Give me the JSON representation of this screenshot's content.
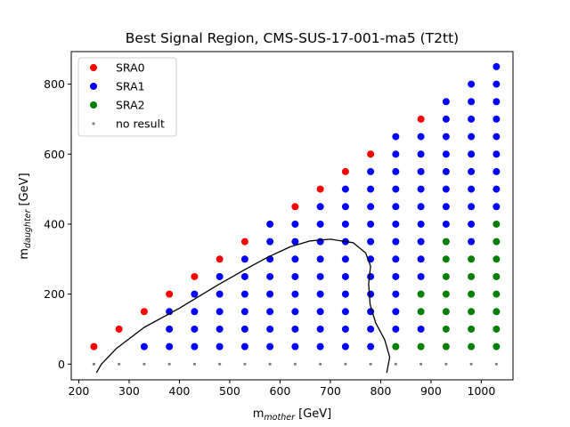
{
  "chart_data": {
    "type": "scatter",
    "title": "Best Signal Region, CMS-SUS-17-001-ma5 (T2tt)",
    "xlabel": {
      "main": "m",
      "sub": "mother",
      "unit": " [GeV]"
    },
    "ylabel": {
      "main": "m",
      "sub": "daughter",
      "unit": " [GeV]"
    },
    "xlim": [
      185,
      1063
    ],
    "ylim": [
      -45,
      893
    ],
    "xticks": [
      200,
      300,
      400,
      500,
      600,
      700,
      800,
      900,
      1000
    ],
    "yticks": [
      0,
      200,
      400,
      600,
      800
    ],
    "grid": false,
    "legend_position": "top-left",
    "series": [
      {
        "name": "SRA0",
        "color": "#ff0000",
        "marker": "large",
        "points": [
          [
            230,
            50
          ],
          [
            280,
            100
          ],
          [
            330,
            150
          ],
          [
            380,
            200
          ],
          [
            430,
            250
          ],
          [
            480,
            300
          ],
          [
            530,
            350
          ],
          [
            630,
            450
          ],
          [
            680,
            500
          ],
          [
            730,
            550
          ],
          [
            780,
            600
          ],
          [
            880,
            700
          ]
        ]
      },
      {
        "name": "SRA1",
        "color": "#0000ff",
        "marker": "large",
        "points": [
          [
            330,
            50
          ],
          [
            380,
            50
          ],
          [
            430,
            50
          ],
          [
            480,
            50
          ],
          [
            530,
            50
          ],
          [
            580,
            50
          ],
          [
            630,
            50
          ],
          [
            680,
            50
          ],
          [
            730,
            50
          ],
          [
            780,
            50
          ],
          [
            380,
            100
          ],
          [
            430,
            100
          ],
          [
            480,
            100
          ],
          [
            530,
            100
          ],
          [
            580,
            100
          ],
          [
            630,
            100
          ],
          [
            680,
            100
          ],
          [
            730,
            100
          ],
          [
            780,
            100
          ],
          [
            830,
            100
          ],
          [
            880,
            100
          ],
          [
            380,
            150
          ],
          [
            430,
            150
          ],
          [
            480,
            150
          ],
          [
            530,
            150
          ],
          [
            580,
            150
          ],
          [
            630,
            150
          ],
          [
            680,
            150
          ],
          [
            730,
            150
          ],
          [
            780,
            150
          ],
          [
            830,
            150
          ],
          [
            430,
            200
          ],
          [
            480,
            200
          ],
          [
            530,
            200
          ],
          [
            580,
            200
          ],
          [
            630,
            200
          ],
          [
            680,
            200
          ],
          [
            730,
            200
          ],
          [
            780,
            200
          ],
          [
            830,
            200
          ],
          [
            480,
            250
          ],
          [
            530,
            250
          ],
          [
            580,
            250
          ],
          [
            630,
            250
          ],
          [
            680,
            250
          ],
          [
            730,
            250
          ],
          [
            780,
            250
          ],
          [
            830,
            250
          ],
          [
            880,
            250
          ],
          [
            530,
            300
          ],
          [
            580,
            300
          ],
          [
            630,
            300
          ],
          [
            680,
            300
          ],
          [
            730,
            300
          ],
          [
            780,
            300
          ],
          [
            830,
            300
          ],
          [
            880,
            300
          ],
          [
            580,
            350
          ],
          [
            630,
            350
          ],
          [
            680,
            350
          ],
          [
            730,
            350
          ],
          [
            780,
            350
          ],
          [
            830,
            350
          ],
          [
            880,
            350
          ],
          [
            980,
            350
          ],
          [
            580,
            400
          ],
          [
            630,
            400
          ],
          [
            680,
            400
          ],
          [
            730,
            400
          ],
          [
            780,
            400
          ],
          [
            830,
            400
          ],
          [
            880,
            400
          ],
          [
            930,
            400
          ],
          [
            980,
            400
          ],
          [
            680,
            450
          ],
          [
            730,
            450
          ],
          [
            780,
            450
          ],
          [
            830,
            450
          ],
          [
            880,
            450
          ],
          [
            930,
            450
          ],
          [
            980,
            450
          ],
          [
            1030,
            450
          ],
          [
            730,
            500
          ],
          [
            780,
            500
          ],
          [
            830,
            500
          ],
          [
            880,
            500
          ],
          [
            930,
            500
          ],
          [
            980,
            500
          ],
          [
            1030,
            500
          ],
          [
            780,
            550
          ],
          [
            830,
            550
          ],
          [
            880,
            550
          ],
          [
            930,
            550
          ],
          [
            980,
            550
          ],
          [
            1030,
            550
          ],
          [
            830,
            600
          ],
          [
            880,
            600
          ],
          [
            930,
            600
          ],
          [
            980,
            600
          ],
          [
            1030,
            600
          ],
          [
            830,
            650
          ],
          [
            880,
            650
          ],
          [
            930,
            650
          ],
          [
            980,
            650
          ],
          [
            1030,
            650
          ],
          [
            930,
            700
          ],
          [
            980,
            700
          ],
          [
            1030,
            700
          ],
          [
            930,
            750
          ],
          [
            980,
            750
          ],
          [
            1030,
            750
          ],
          [
            980,
            800
          ],
          [
            1030,
            800
          ],
          [
            1030,
            850
          ]
        ]
      },
      {
        "name": "SRA2",
        "color": "#008000",
        "marker": "large",
        "points": [
          [
            830,
            50
          ],
          [
            880,
            50
          ],
          [
            930,
            50
          ],
          [
            980,
            50
          ],
          [
            1030,
            50
          ],
          [
            930,
            100
          ],
          [
            980,
            100
          ],
          [
            1030,
            100
          ],
          [
            880,
            150
          ],
          [
            930,
            150
          ],
          [
            980,
            150
          ],
          [
            1030,
            150
          ],
          [
            880,
            200
          ],
          [
            930,
            200
          ],
          [
            980,
            200
          ],
          [
            1030,
            200
          ],
          [
            930,
            250
          ],
          [
            980,
            250
          ],
          [
            1030,
            250
          ],
          [
            930,
            300
          ],
          [
            980,
            300
          ],
          [
            1030,
            300
          ],
          [
            930,
            350
          ],
          [
            1030,
            350
          ],
          [
            1030,
            400
          ]
        ]
      },
      {
        "name": "no result",
        "color": "#808080",
        "marker": "small",
        "points": [
          [
            230,
            0
          ],
          [
            280,
            0
          ],
          [
            330,
            0
          ],
          [
            380,
            0
          ],
          [
            430,
            0
          ],
          [
            480,
            0
          ],
          [
            530,
            0
          ],
          [
            580,
            0
          ],
          [
            630,
            0
          ],
          [
            680,
            0
          ],
          [
            730,
            0
          ],
          [
            780,
            0
          ],
          [
            830,
            0
          ],
          [
            880,
            0
          ],
          [
            930,
            0
          ],
          [
            980,
            0
          ],
          [
            1030,
            0
          ]
        ]
      }
    ],
    "exclusion_contour": [
      [
        235,
        -25
      ],
      [
        245,
        0
      ],
      [
        275,
        45
      ],
      [
        330,
        105
      ],
      [
        400,
        160
      ],
      [
        475,
        225
      ],
      [
        530,
        270
      ],
      [
        575,
        305
      ],
      [
        620,
        335
      ],
      [
        660,
        352
      ],
      [
        700,
        357
      ],
      [
        745,
        347
      ],
      [
        770,
        318
      ],
      [
        780,
        280
      ],
      [
        776,
        230
      ],
      [
        779,
        170
      ],
      [
        790,
        118
      ],
      [
        808,
        70
      ],
      [
        818,
        20
      ],
      [
        812,
        -25
      ]
    ]
  }
}
